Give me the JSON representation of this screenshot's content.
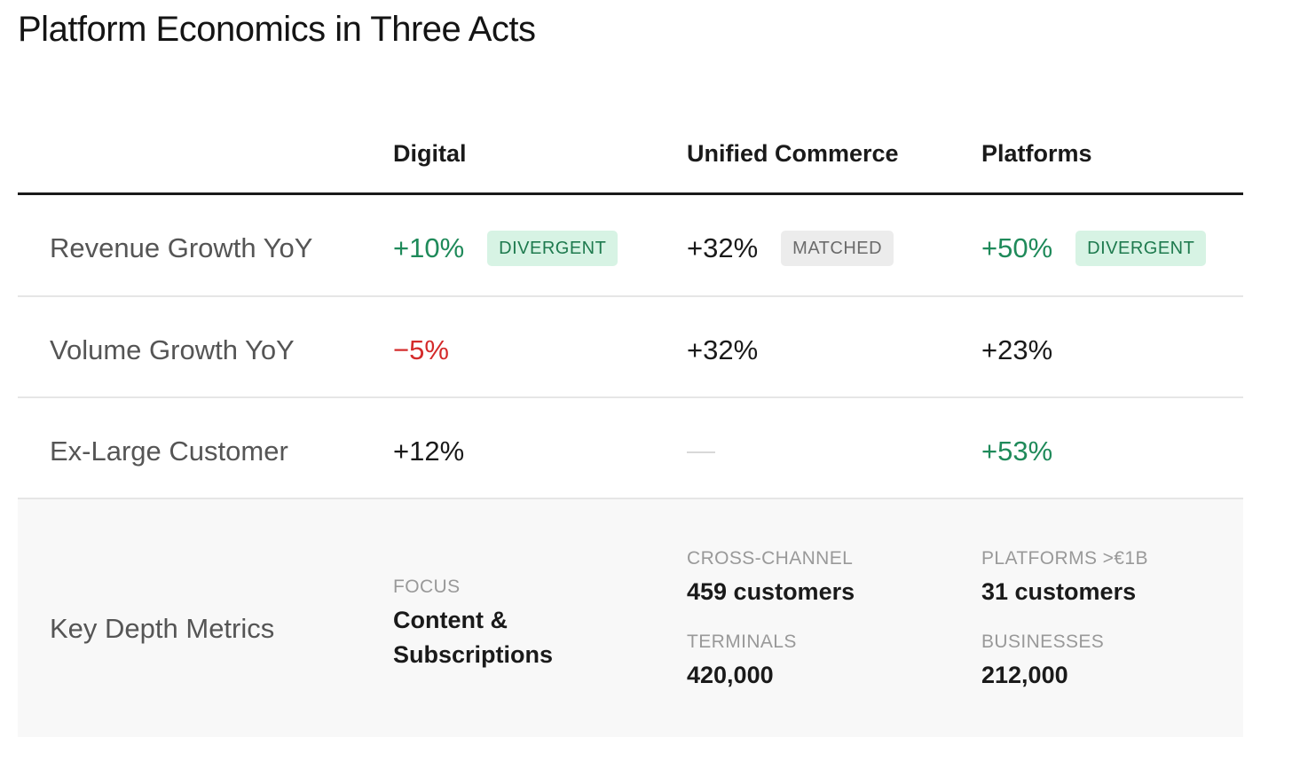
{
  "title": "Platform Economics in Three Acts",
  "columns": [
    "Digital",
    "Unified Commerce",
    "Platforms"
  ],
  "rows": [
    {
      "label": "Revenue Growth YoY",
      "cells": [
        {
          "value": "+10%",
          "badge": "DIVERGENT"
        },
        {
          "value": "+32%",
          "badge": "MATCHED"
        },
        {
          "value": "+50%",
          "badge": "DIVERGENT"
        }
      ]
    },
    {
      "label": "Volume Growth YoY",
      "cells": [
        {
          "value": "−5%"
        },
        {
          "value": "+32%"
        },
        {
          "value": "+23%"
        }
      ]
    },
    {
      "label": "Ex-Large Customer",
      "cells": [
        {
          "value": "+12%"
        },
        {
          "value": ""
        },
        {
          "value": "+53%"
        }
      ]
    }
  ],
  "depth": {
    "label": "Key Depth Metrics",
    "digital": {
      "focus_label": "FOCUS",
      "focus_value": "Content & Subscriptions"
    },
    "unified": {
      "m1_label": "CROSS-CHANNEL",
      "m1_value": "459 customers",
      "m2_label": "TERMINALS",
      "m2_value": "420,000"
    },
    "platforms": {
      "m1_label": "PLATFORMS >€1B",
      "m1_value": "31 customers",
      "m2_label": "BUSINESSES",
      "m2_value": "212,000"
    }
  },
  "colors": {
    "positive": "#1f8a5a",
    "negative": "#d42a2a",
    "badge_divergent_bg": "#d7f3e4",
    "badge_matched_bg": "#ececec"
  }
}
